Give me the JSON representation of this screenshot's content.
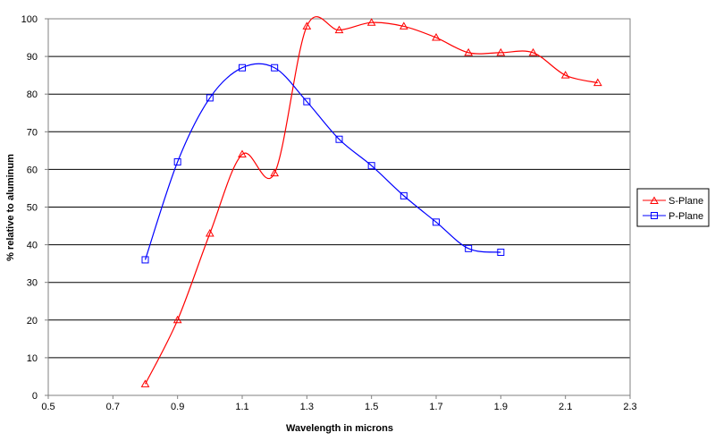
{
  "chart_data": {
    "type": "line",
    "xlabel": "Wavelength  in microns",
    "ylabel": "% relative to aluminum",
    "xlim": [
      0.5,
      2.3
    ],
    "ylim": [
      0,
      100
    ],
    "x_ticks": [
      "0.5",
      "0.7",
      "0.9",
      "1.1",
      "1.3",
      "1.5",
      "1.7",
      "1.9",
      "2.1",
      "2.3"
    ],
    "y_ticks": [
      "0",
      "10",
      "20",
      "30",
      "40",
      "50",
      "60",
      "70",
      "80",
      "90",
      "100"
    ],
    "grid": "horizontal",
    "legend_position": "right",
    "series": [
      {
        "name": "S-Plane",
        "color": "#ff0000",
        "marker": "triangle",
        "x": [
          0.8,
          0.9,
          1.0,
          1.1,
          1.2,
          1.3,
          1.4,
          1.5,
          1.6,
          1.7,
          1.8,
          1.9,
          2.0,
          2.1,
          2.2
        ],
        "values": [
          3,
          20,
          43,
          64,
          59,
          98,
          97,
          99,
          98,
          95,
          91,
          91,
          91,
          85,
          83
        ]
      },
      {
        "name": "P-Plane",
        "color": "#0000ff",
        "marker": "square",
        "x": [
          0.8,
          0.9,
          1.0,
          1.1,
          1.2,
          1.3,
          1.4,
          1.5,
          1.6,
          1.7,
          1.8,
          1.9
        ],
        "values": [
          36,
          62,
          79,
          87,
          87,
          78,
          68,
          61,
          53,
          46,
          39,
          38
        ]
      }
    ]
  }
}
